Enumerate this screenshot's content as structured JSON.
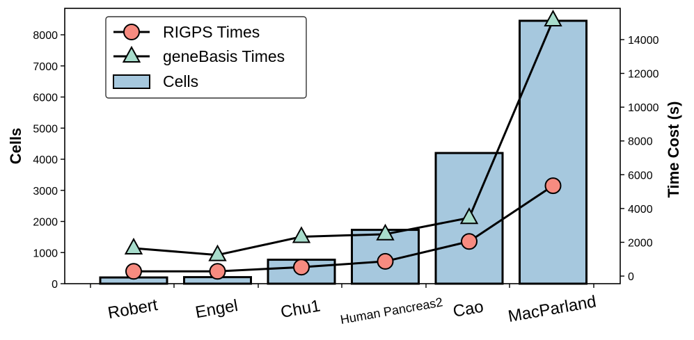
{
  "chart_data": {
    "type": "bar+line",
    "categories": [
      "Robert",
      "Engel",
      "Chu1",
      "Human Pancreas2",
      "Cao",
      "MacParland"
    ],
    "bars": {
      "name": "Cells",
      "axis": "left",
      "values": [
        200,
        210,
        770,
        1730,
        4200,
        8450
      ],
      "color": "#a6c8de"
    },
    "series": [
      {
        "name": "RIGPS Times",
        "axis": "right",
        "marker": "circle",
        "color": "#f78b80",
        "values": [
          280,
          280,
          530,
          870,
          2050,
          5350
        ]
      },
      {
        "name": "geneBasis Times",
        "axis": "right",
        "marker": "triangle",
        "color": "#a8ddcc",
        "values": [
          1650,
          1250,
          2330,
          2480,
          3450,
          15150
        ]
      }
    ],
    "ylabel_left": "Cells",
    "ylabel_right": "Time Cost (s)",
    "ylim_left": [
      0,
      8850
    ],
    "ylim_right": [
      -450,
      15850
    ],
    "yticks_left": [
      "0",
      "1000",
      "2000",
      "3000",
      "4000",
      "5000",
      "6000",
      "7000",
      "8000"
    ],
    "yticks_right": [
      "0",
      "2000",
      "4000",
      "6000",
      "8000",
      "10000",
      "12000",
      "14000"
    ],
    "legend": {
      "placement": "top-left",
      "entries": [
        "RIGPS Times",
        "geneBasis Times",
        "Cells"
      ]
    },
    "grid": false
  }
}
